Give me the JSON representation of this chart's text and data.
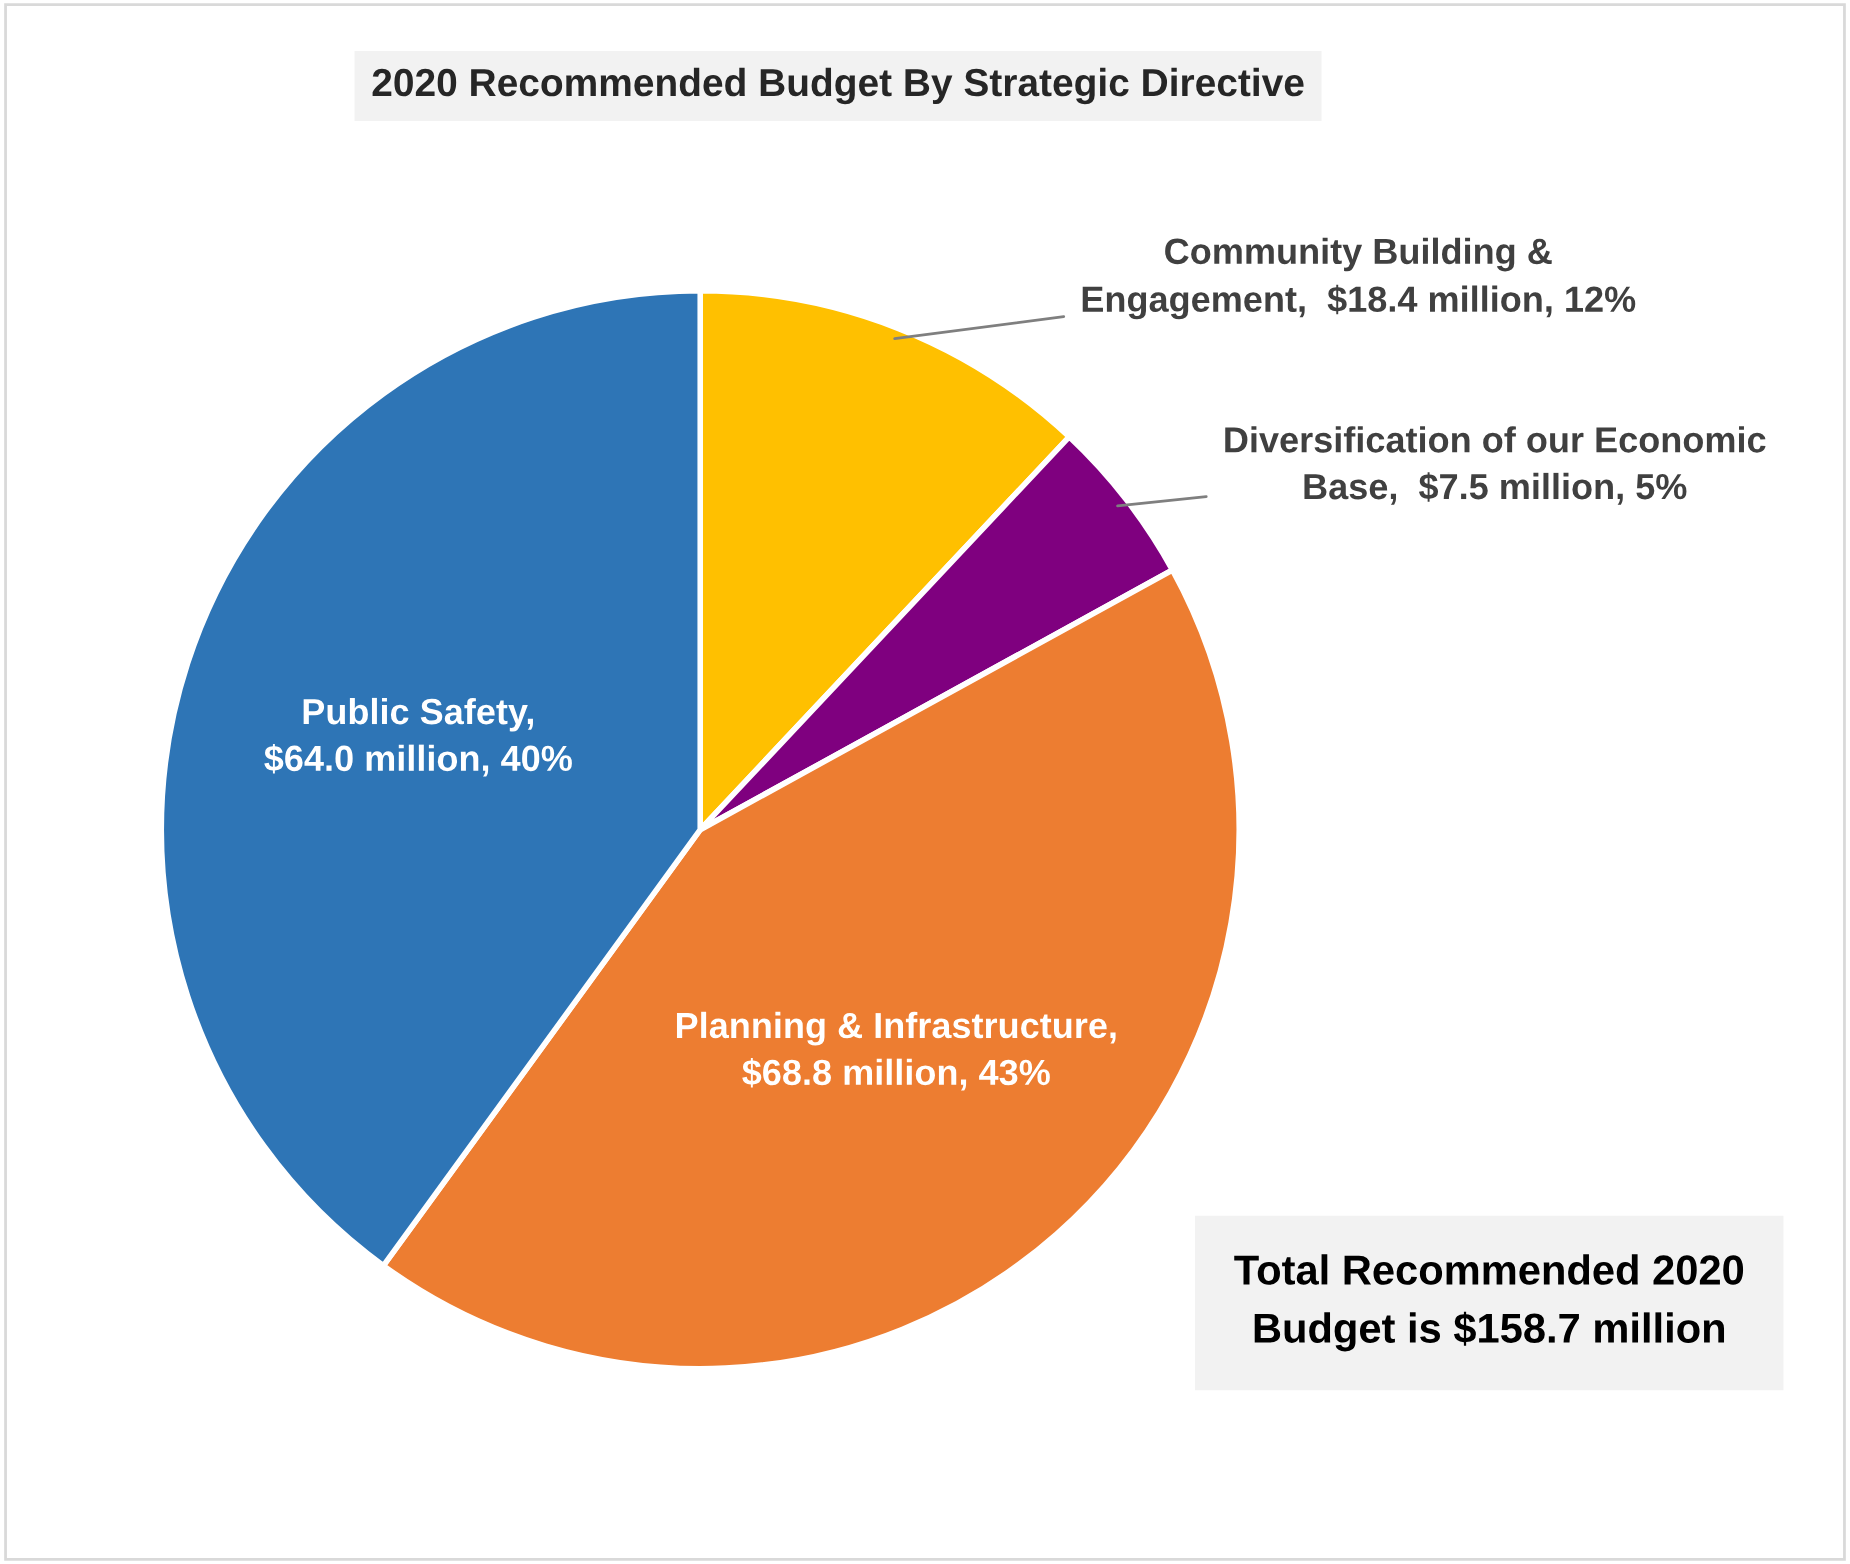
{
  "chart_data": {
    "type": "pie",
    "title": "2020 Recommended Budget By Strategic Directive",
    "categories": [
      "Community Building &\nEngagement,  $18.4 million, 12%",
      "Diversification of our Economic\nBase,  $7.5 million, 5%",
      "Planning & Infrastructure,\n$68.8 million, 43%",
      "Public Safety,\n$64.0 million, 40%"
    ],
    "values": [
      12,
      5,
      43,
      40
    ],
    "colors": [
      "#ffc000",
      "#7f007f",
      "#ed7d31",
      "#2e75b6"
    ],
    "annotations": [
      "Total Recommended 2020\nBudget is $158.7 million"
    ],
    "legend": false
  }
}
